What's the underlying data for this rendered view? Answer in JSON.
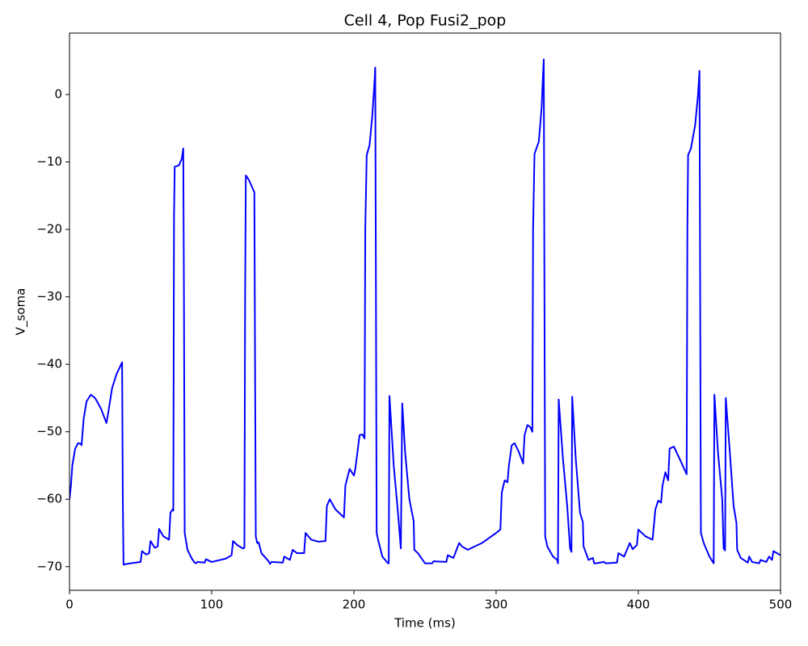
{
  "chart_data": {
    "type": "line",
    "title": "Cell 4, Pop Fusi2_pop",
    "x_label": "Time (ms)",
    "y_label": "V_soma",
    "xlim": [
      0,
      500
    ],
    "ylim": [
      -73.5,
      9.1
    ],
    "xticks": [
      0,
      100,
      200,
      300,
      400,
      500
    ],
    "yticks": [
      {
        "value": -70,
        "label": "−70"
      },
      {
        "value": -60,
        "label": "−60"
      },
      {
        "value": -50,
        "label": "−50"
      },
      {
        "value": -40,
        "label": "−40"
      },
      {
        "value": -30,
        "label": "−30"
      },
      {
        "value": -20,
        "label": "−20"
      },
      {
        "value": -10,
        "label": "−10"
      },
      0
    ],
    "grid": false,
    "x": [
      0,
      1,
      2,
      4,
      6,
      8,
      8.5,
      10,
      12,
      15,
      18,
      22,
      26,
      27,
      30,
      33,
      37,
      37.5,
      38,
      40,
      50,
      51,
      54,
      56,
      57,
      60,
      62,
      63,
      66,
      70,
      71,
      72.5,
      73,
      73.5,
      74,
      77,
      79,
      80,
      80.5,
      81,
      83,
      86,
      88,
      89,
      90,
      95,
      96,
      100,
      110,
      114,
      115,
      118,
      122,
      123,
      123.5,
      124,
      126,
      130,
      130.5,
      131,
      132,
      133,
      135,
      140,
      141,
      142,
      150,
      151,
      155,
      157,
      160,
      165,
      166,
      170,
      175,
      180,
      181,
      183,
      187,
      193,
      194,
      197,
      200,
      201,
      204,
      206,
      207.5,
      208,
      209,
      211,
      213,
      214.5,
      215,
      215.5,
      216,
      217,
      220,
      224,
      224.5,
      225,
      228,
      231,
      233,
      234,
      236,
      239,
      242,
      242.5,
      245,
      250,
      255,
      256,
      265,
      266,
      270,
      274,
      276,
      280,
      290,
      300,
      303,
      304,
      306,
      308,
      309,
      311,
      313,
      316,
      319,
      320,
      322,
      324,
      325.5,
      326,
      327,
      330,
      332,
      333,
      333.5,
      334,
      334.5,
      336,
      340,
      343,
      343.5,
      344,
      347,
      350,
      352,
      353,
      353.5,
      356,
      359,
      361,
      361.5,
      365,
      368,
      369,
      370,
      376,
      377,
      385,
      386,
      390,
      394,
      396,
      399,
      400,
      405,
      410,
      412,
      414,
      416,
      417,
      419,
      421,
      422,
      425,
      429,
      434,
      434.5,
      435,
      437,
      440,
      442,
      443,
      443.5,
      444,
      446,
      450,
      453,
      453.5,
      456,
      459,
      460,
      461,
      461.5,
      464,
      467,
      469,
      469.5,
      472,
      477,
      478,
      480,
      485,
      486,
      490,
      492,
      494,
      495,
      500
    ],
    "series": [
      {
        "color": "#0000ff",
        "values": [
          -60,
          -58,
          -55,
          -52.5,
          -51.7,
          -51.8,
          -52,
          -48,
          -45.5,
          -44.5,
          -45,
          -46.5,
          -48.7,
          -47.5,
          -43.5,
          -41.5,
          -39.7,
          -60,
          -69.7,
          -69.6,
          -69.3,
          -67.7,
          -68.2,
          -68,
          -66.2,
          -67.2,
          -67,
          -64.4,
          -65.5,
          -66,
          -62,
          -61.5,
          -61.7,
          -18,
          -10.7,
          -10.5,
          -9.5,
          -8,
          -30,
          -65,
          -67.5,
          -68.8,
          -69.4,
          -69.5,
          -69.3,
          -69.4,
          -68.9,
          -69.3,
          -68.8,
          -68.3,
          -66.2,
          -66.8,
          -67.3,
          -67.2,
          -30,
          -12,
          -12.6,
          -14.5,
          -40,
          -65.5,
          -66.5,
          -66.4,
          -68,
          -69.2,
          -69.6,
          -69.3,
          -69.4,
          -68.5,
          -69,
          -67.5,
          -68,
          -68,
          -65,
          -66,
          -66.3,
          -66.2,
          -61,
          -60,
          -61.5,
          -62.7,
          -58,
          -55.5,
          -56.5,
          -55.5,
          -50.5,
          -50.4,
          -51,
          -20,
          -9,
          -7.5,
          -3,
          2,
          4,
          -30,
          -65,
          -66,
          -68.5,
          -69.5,
          -69.5,
          -44.7,
          -55,
          -62,
          -67.3,
          -45.8,
          -53,
          -60,
          -63.2,
          -67.5,
          -68,
          -69.5,
          -69.5,
          -69.2,
          -69.3,
          -68.3,
          -68.7,
          -66.5,
          -67,
          -67.5,
          -66.5,
          -65,
          -64.5,
          -59,
          -57.2,
          -57.5,
          -55,
          -52,
          -51.7,
          -53,
          -54.7,
          -50.5,
          -49,
          -49.3,
          -50,
          -20,
          -8.8,
          -7,
          -2,
          3,
          5.2,
          -30,
          -65.5,
          -67,
          -68.5,
          -69,
          -69.5,
          -45.2,
          -54,
          -61,
          -67.3,
          -67.8,
          -44.8,
          -54,
          -62,
          -63.4,
          -67,
          -69,
          -68.7,
          -69.5,
          -69.5,
          -69.3,
          -69.5,
          -69.4,
          -68,
          -68.5,
          -66.5,
          -67.4,
          -66.8,
          -64.5,
          -65.5,
          -66,
          -61.5,
          -60.2,
          -60.5,
          -58,
          -56,
          -57.2,
          -52.5,
          -52.2,
          -54,
          -56.3,
          -20,
          -9,
          -8,
          -4.5,
          0,
          3.5,
          -30,
          -65,
          -66.5,
          -68.5,
          -69.5,
          -44.5,
          -53,
          -60,
          -67.3,
          -67.6,
          -45,
          -52,
          -61,
          -63.5,
          -67.5,
          -68.7,
          -69.4,
          -68.5,
          -69.3,
          -69.5,
          -69,
          -69.3,
          -68.5,
          -69,
          -67.7,
          -68.3
        ]
      }
    ]
  }
}
